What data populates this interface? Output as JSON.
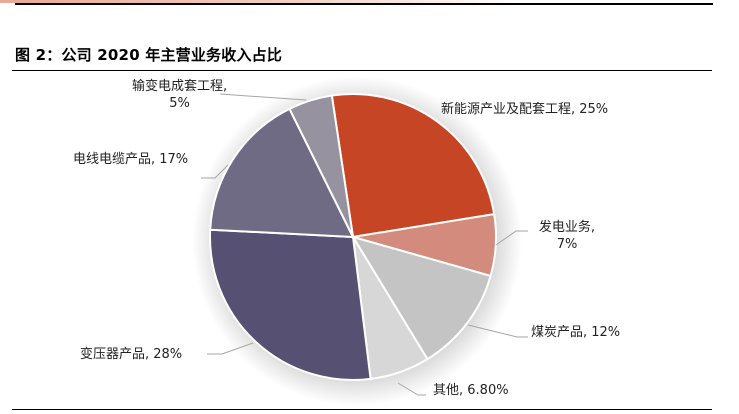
{
  "figure": {
    "title": "图 2：公司 2020 年主营业务收入占比"
  },
  "colors": {
    "accent_bar": "#e8a996",
    "rule": "#000000"
  },
  "chart_data": {
    "type": "pie",
    "title": "图 2：公司 2020 年主营业务收入占比",
    "start_angle_deg": -8.5,
    "direction": "clockwise",
    "legend": "none (data labels with leader lines)",
    "slices": [
      {
        "label": "新能源产业及配套工程",
        "value": 25,
        "display": "25%",
        "color": "#c64524"
      },
      {
        "label": "发电业务",
        "value": 7,
        "display": "7%",
        "color": "#d28b7c"
      },
      {
        "label": "煤炭产品",
        "value": 12,
        "display": "12%",
        "color": "#c4c4c4"
      },
      {
        "label": "其他",
        "value": 6.8,
        "display": "6.80%",
        "color": "#d7d7d7"
      },
      {
        "label": "变压器产品",
        "value": 28,
        "display": "28%",
        "color": "#565073"
      },
      {
        "label": "电线电缆产品",
        "value": 17,
        "display": "17%",
        "color": "#706b85"
      },
      {
        "label": "输变电成套工程",
        "value": 5,
        "display": "5%",
        "color": "#97929f"
      }
    ]
  },
  "labels": {
    "new_energy": "新能源产业及配套工程, 25%",
    "power_line1": "发电业务,",
    "power_line2": "7%",
    "coal": "煤炭产品, 12%",
    "other": "其他, 6.80%",
    "transformer": "变压器产品, 28%",
    "cable": "电线电缆产品, 17%",
    "transmission_line1": "输变电成套工程,",
    "transmission_line2": "5%"
  }
}
